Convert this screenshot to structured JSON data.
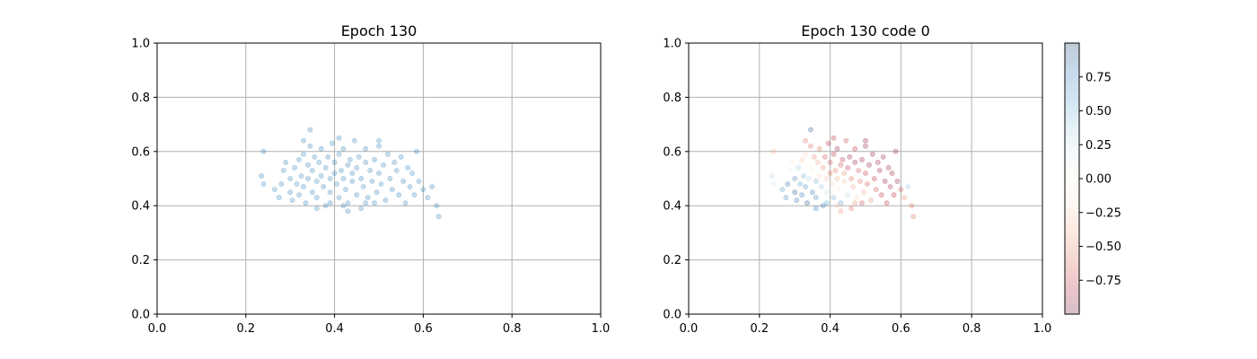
{
  "colors": {
    "scatter_point": "#1f77b4",
    "grid": "#b0b0b0",
    "colormap": [
      "#67001f",
      "#b2182b",
      "#d6604d",
      "#f4a582",
      "#fddbc7",
      "#fffbe5",
      "#d1e5f0",
      "#92c5de",
      "#4393c3",
      "#2166ac",
      "#053061"
    ]
  },
  "chart_data": [
    {
      "type": "scatter",
      "title": "Epoch 130",
      "xlabel": "",
      "ylabel": "",
      "xlim": [
        0,
        1
      ],
      "ylim": [
        0,
        1
      ],
      "xticks": [
        "0.0",
        "0.2",
        "0.4",
        "0.6",
        "0.8",
        "1.0"
      ],
      "yticks": [
        "0.0",
        "0.2",
        "0.4",
        "0.6",
        "0.8",
        "1.0"
      ],
      "grid": true,
      "point_alpha": 0.25,
      "series": [
        {
          "points": [
            [
              0.24,
              0.6
            ],
            [
              0.235,
              0.51
            ],
            [
              0.24,
              0.48
            ],
            [
              0.265,
              0.46
            ],
            [
              0.275,
              0.43
            ],
            [
              0.28,
              0.48
            ],
            [
              0.285,
              0.53
            ],
            [
              0.29,
              0.56
            ],
            [
              0.3,
              0.5
            ],
            [
              0.3,
              0.45
            ],
            [
              0.305,
              0.42
            ],
            [
              0.31,
              0.54
            ],
            [
              0.315,
              0.48
            ],
            [
              0.32,
              0.57
            ],
            [
              0.32,
              0.44
            ],
            [
              0.325,
              0.51
            ],
            [
              0.33,
              0.59
            ],
            [
              0.33,
              0.47
            ],
            [
              0.335,
              0.41
            ],
            [
              0.34,
              0.55
            ],
            [
              0.34,
              0.5
            ],
            [
              0.345,
              0.62
            ],
            [
              0.345,
              0.68
            ],
            [
              0.35,
              0.45
            ],
            [
              0.35,
              0.53
            ],
            [
              0.355,
              0.58
            ],
            [
              0.36,
              0.49
            ],
            [
              0.36,
              0.43
            ],
            [
              0.365,
              0.56
            ],
            [
              0.37,
              0.51
            ],
            [
              0.37,
              0.61
            ],
            [
              0.375,
              0.47
            ],
            [
              0.38,
              0.54
            ],
            [
              0.38,
              0.4
            ],
            [
              0.385,
              0.58
            ],
            [
              0.39,
              0.5
            ],
            [
              0.39,
              0.45
            ],
            [
              0.395,
              0.63
            ],
            [
              0.4,
              0.52
            ],
            [
              0.4,
              0.56
            ],
            [
              0.405,
              0.48
            ],
            [
              0.41,
              0.43
            ],
            [
              0.41,
              0.59
            ],
            [
              0.415,
              0.53
            ],
            [
              0.42,
              0.5
            ],
            [
              0.42,
              0.61
            ],
            [
              0.425,
              0.46
            ],
            [
              0.43,
              0.55
            ],
            [
              0.43,
              0.41
            ],
            [
              0.435,
              0.57
            ],
            [
              0.44,
              0.52
            ],
            [
              0.44,
              0.49
            ],
            [
              0.445,
              0.64
            ],
            [
              0.45,
              0.54
            ],
            [
              0.45,
              0.44
            ],
            [
              0.455,
              0.58
            ],
            [
              0.46,
              0.5
            ],
            [
              0.465,
              0.47
            ],
            [
              0.47,
              0.56
            ],
            [
              0.47,
              0.61
            ],
            [
              0.475,
              0.43
            ],
            [
              0.48,
              0.53
            ],
            [
              0.485,
              0.49
            ],
            [
              0.49,
              0.57
            ],
            [
              0.495,
              0.45
            ],
            [
              0.5,
              0.52
            ],
            [
              0.5,
              0.62
            ],
            [
              0.505,
              0.48
            ],
            [
              0.51,
              0.55
            ],
            [
              0.515,
              0.42
            ],
            [
              0.52,
              0.59
            ],
            [
              0.525,
              0.5
            ],
            [
              0.53,
              0.46
            ],
            [
              0.535,
              0.56
            ],
            [
              0.54,
              0.53
            ],
            [
              0.545,
              0.44
            ],
            [
              0.55,
              0.58
            ],
            [
              0.555,
              0.49
            ],
            [
              0.56,
              0.41
            ],
            [
              0.565,
              0.54
            ],
            [
              0.57,
              0.47
            ],
            [
              0.575,
              0.52
            ],
            [
              0.58,
              0.44
            ],
            [
              0.585,
              0.6
            ],
            [
              0.59,
              0.49
            ],
            [
              0.6,
              0.46
            ],
            [
              0.61,
              0.43
            ],
            [
              0.62,
              0.47
            ],
            [
              0.63,
              0.4
            ],
            [
              0.635,
              0.36
            ],
            [
              0.42,
              0.4
            ],
            [
              0.43,
              0.38
            ],
            [
              0.46,
              0.39
            ],
            [
              0.49,
              0.41
            ],
            [
              0.36,
              0.39
            ],
            [
              0.33,
              0.64
            ],
            [
              0.5,
              0.64
            ],
            [
              0.41,
              0.65
            ],
            [
              0.39,
              0.41
            ],
            [
              0.47,
              0.41
            ]
          ]
        }
      ]
    },
    {
      "type": "scatter",
      "title": "Epoch 130 code 0",
      "xlabel": "",
      "ylabel": "",
      "xlim": [
        0,
        1
      ],
      "ylim": [
        0,
        1
      ],
      "xticks": [
        "0.0",
        "0.2",
        "0.4",
        "0.6",
        "0.8",
        "1.0"
      ],
      "yticks": [
        "0.0",
        "0.2",
        "0.4",
        "0.6",
        "0.8",
        "1.0"
      ],
      "grid": true,
      "point_alpha": 0.25,
      "colorbar": {
        "range": [
          -1,
          1
        ],
        "ticks": [
          "0.75",
          "0.50",
          "0.25",
          "0.00",
          "−0.25",
          "−0.50",
          "−0.75"
        ],
        "tick_values": [
          0.75,
          0.5,
          0.25,
          0.0,
          -0.25,
          -0.5,
          -0.75
        ]
      },
      "series": [
        {
          "points": [
            [
              0.24,
              0.6,
              -0.4
            ],
            [
              0.235,
              0.51,
              0.3
            ],
            [
              0.24,
              0.48,
              0.2
            ],
            [
              0.265,
              0.46,
              0.6
            ],
            [
              0.275,
              0.43,
              0.7
            ],
            [
              0.28,
              0.48,
              0.8
            ],
            [
              0.285,
              0.53,
              0.1
            ],
            [
              0.29,
              0.56,
              -0.1
            ],
            [
              0.3,
              0.5,
              0.7
            ],
            [
              0.3,
              0.45,
              0.9
            ],
            [
              0.305,
              0.42,
              0.8
            ],
            [
              0.31,
              0.54,
              0.4
            ],
            [
              0.315,
              0.48,
              0.6
            ],
            [
              0.32,
              0.57,
              -0.3
            ],
            [
              0.32,
              0.44,
              0.8
            ],
            [
              0.325,
              0.51,
              0.5
            ],
            [
              0.33,
              0.59,
              -0.2
            ],
            [
              0.33,
              0.47,
              0.7
            ],
            [
              0.335,
              0.41,
              0.9
            ],
            [
              0.34,
              0.55,
              0.0
            ],
            [
              0.34,
              0.5,
              0.3
            ],
            [
              0.345,
              0.62,
              -0.6
            ],
            [
              0.345,
              0.68,
              0.9
            ],
            [
              0.35,
              0.45,
              0.8
            ],
            [
              0.35,
              0.53,
              -0.1
            ],
            [
              0.355,
              0.58,
              -0.5
            ],
            [
              0.36,
              0.49,
              0.5
            ],
            [
              0.36,
              0.43,
              0.7
            ],
            [
              0.365,
              0.56,
              -0.4
            ],
            [
              0.37,
              0.51,
              -0.2
            ],
            [
              0.37,
              0.61,
              -0.6
            ],
            [
              0.375,
              0.47,
              0.4
            ],
            [
              0.38,
              0.54,
              -0.5
            ],
            [
              0.38,
              0.4,
              0.8
            ],
            [
              0.385,
              0.58,
              -0.7
            ],
            [
              0.39,
              0.5,
              -0.3
            ],
            [
              0.39,
              0.45,
              0.2
            ],
            [
              0.395,
              0.63,
              -0.8
            ],
            [
              0.4,
              0.52,
              -0.6
            ],
            [
              0.4,
              0.56,
              -0.7
            ],
            [
              0.405,
              0.48,
              -0.2
            ],
            [
              0.41,
              0.43,
              0.5
            ],
            [
              0.41,
              0.59,
              -0.8
            ],
            [
              0.415,
              0.53,
              -0.6
            ],
            [
              0.42,
              0.5,
              -0.4
            ],
            [
              0.42,
              0.61,
              -0.9
            ],
            [
              0.425,
              0.46,
              -0.1
            ],
            [
              0.43,
              0.55,
              -0.7
            ],
            [
              0.43,
              0.41,
              0.6
            ],
            [
              0.435,
              0.57,
              -0.8
            ],
            [
              0.44,
              0.52,
              -0.5
            ],
            [
              0.44,
              0.49,
              -0.3
            ],
            [
              0.445,
              0.64,
              -0.7
            ],
            [
              0.45,
              0.54,
              -0.8
            ],
            [
              0.45,
              0.44,
              0.3
            ],
            [
              0.455,
              0.58,
              -0.9
            ],
            [
              0.46,
              0.5,
              -0.6
            ],
            [
              0.465,
              0.47,
              -0.4
            ],
            [
              0.47,
              0.56,
              -0.9
            ],
            [
              0.47,
              0.61,
              -0.8
            ],
            [
              0.475,
              0.43,
              -0.2
            ],
            [
              0.48,
              0.53,
              -0.7
            ],
            [
              0.485,
              0.49,
              -0.6
            ],
            [
              0.49,
              0.57,
              -0.9
            ],
            [
              0.495,
              0.45,
              -0.4
            ],
            [
              0.5,
              0.52,
              -0.8
            ],
            [
              0.5,
              0.62,
              -0.9
            ],
            [
              0.505,
              0.48,
              -0.7
            ],
            [
              0.51,
              0.55,
              -0.9
            ],
            [
              0.515,
              0.42,
              -0.5
            ],
            [
              0.52,
              0.59,
              -0.9
            ],
            [
              0.525,
              0.5,
              -0.8
            ],
            [
              0.53,
              0.46,
              -0.7
            ],
            [
              0.535,
              0.56,
              -0.9
            ],
            [
              0.54,
              0.53,
              -0.9
            ],
            [
              0.545,
              0.44,
              -0.8
            ],
            [
              0.55,
              0.58,
              -0.9
            ],
            [
              0.555,
              0.49,
              -0.9
            ],
            [
              0.56,
              0.41,
              -0.8
            ],
            [
              0.565,
              0.54,
              -0.9
            ],
            [
              0.57,
              0.47,
              -0.9
            ],
            [
              0.575,
              0.52,
              -0.9
            ],
            [
              0.58,
              0.44,
              -0.8
            ],
            [
              0.585,
              0.6,
              -0.9
            ],
            [
              0.59,
              0.49,
              -0.9
            ],
            [
              0.6,
              0.46,
              -0.7
            ],
            [
              0.61,
              0.43,
              -0.5
            ],
            [
              0.62,
              0.47,
              0.4
            ],
            [
              0.63,
              0.4,
              -0.6
            ],
            [
              0.635,
              0.36,
              -0.6
            ],
            [
              0.42,
              0.4,
              -0.3
            ],
            [
              0.43,
              0.38,
              -0.5
            ],
            [
              0.46,
              0.39,
              -0.6
            ],
            [
              0.49,
              0.41,
              -0.7
            ],
            [
              0.36,
              0.39,
              0.8
            ],
            [
              0.33,
              0.64,
              -0.6
            ],
            [
              0.5,
              0.64,
              -0.9
            ],
            [
              0.41,
              0.65,
              -0.8
            ],
            [
              0.39,
              0.41,
              0.6
            ],
            [
              0.47,
              0.41,
              -0.5
            ]
          ]
        }
      ]
    }
  ]
}
